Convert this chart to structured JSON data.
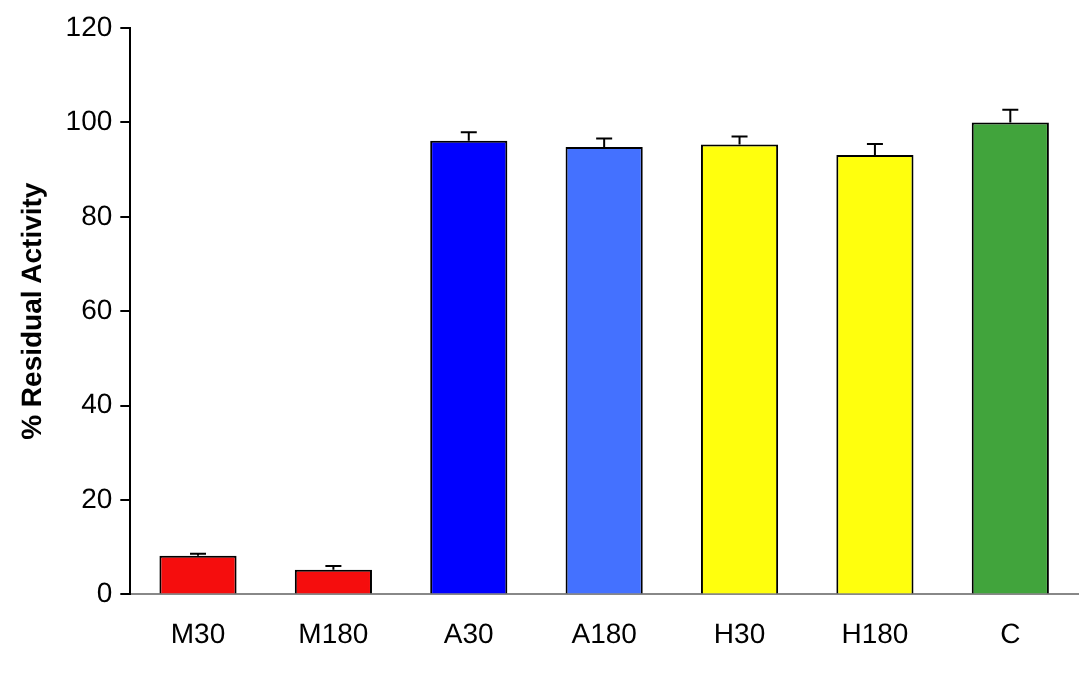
{
  "chart_data": {
    "type": "bar",
    "ylabel": "% Residual Activity",
    "categories": [
      "M30",
      "M180",
      "A30",
      "A180",
      "H30",
      "H180",
      "C"
    ],
    "values": [
      8.2,
      5.2,
      96.1,
      94.8,
      95.3,
      93.1,
      100
    ],
    "colors": [
      "#f50d0d",
      "#f50d0d",
      "#0000ff",
      "#4471ff",
      "#ffff0d",
      "#ffff0d",
      "#41a43c"
    ],
    "errors": [
      [
        8.2,
        8.6
      ],
      [
        5.2,
        6.0
      ],
      [
        96.1,
        97.9
      ],
      [
        94.8,
        96.6
      ],
      [
        95.3,
        97.0
      ],
      [
        93.1,
        95.4
      ],
      [
        100,
        102.7
      ]
    ],
    "ylim": [
      0,
      120
    ],
    "yticks": [
      0,
      20,
      40,
      60,
      80,
      100,
      120
    ],
    "grid": false,
    "legend": false
  }
}
